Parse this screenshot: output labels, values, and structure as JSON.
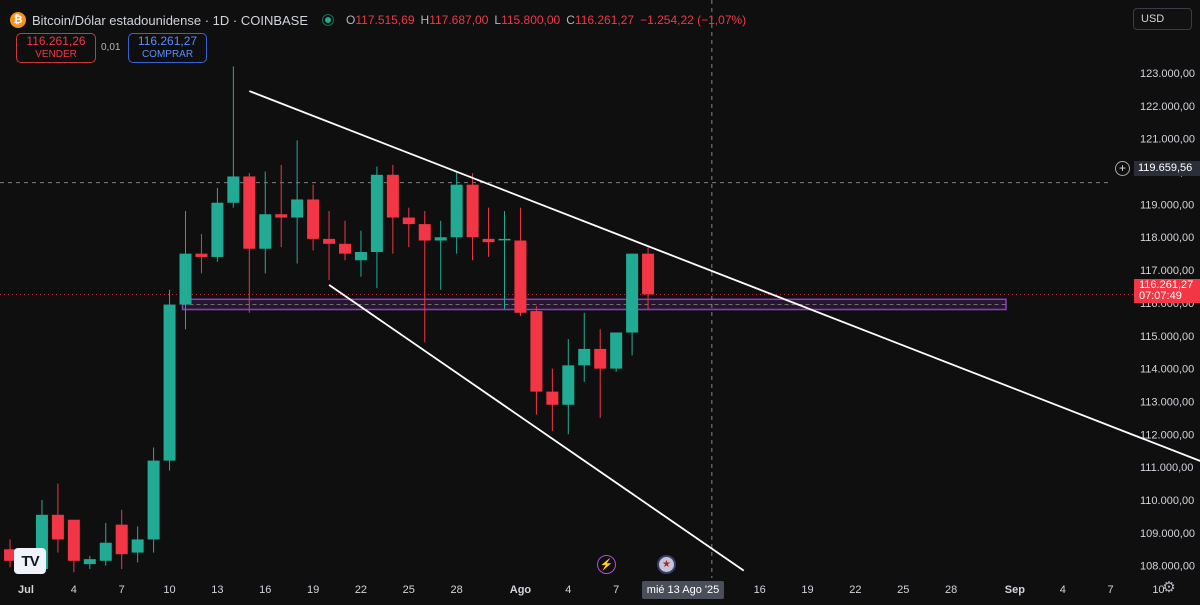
{
  "header": {
    "coin_icon_glyph": "₿",
    "symbol": "Bitcoin/Dólar estadounidense · 1D · COINBASE",
    "ohlc": {
      "open_key": "O",
      "open": "117.515,69",
      "high_key": "H",
      "high": "117.687,00",
      "low_key": "L",
      "low": "115.800,00",
      "close_key": "C",
      "close": "116.261,27",
      "change": "−1.254,22 (−1,07%)"
    }
  },
  "trade": {
    "sell_price": "116.261,26",
    "sell_label": "VENDER",
    "spread": "0,01",
    "buy_price": "116.261,27",
    "buy_label": "COMPRAR"
  },
  "currency": "USD",
  "last_price": {
    "price": "116.261,27",
    "countdown": "07:07:49"
  },
  "crosshair": {
    "price": "119.659,56",
    "date": "mié 13 Ago '25"
  },
  "colors": {
    "up": "#22ab94",
    "down": "#f23645",
    "zone": "#8e3fbf",
    "trendline": "#ffffff",
    "background": "#0f0f0f"
  },
  "icons": {
    "logo": "tradingview-logo-icon",
    "lightning": "lightning-event-icon",
    "flag": "us-flag-event-icon",
    "settings": "gear-icon",
    "add": "plus-icon"
  },
  "chart_data": {
    "type": "candlestick",
    "title": "Bitcoin/Dólar estadounidense · 1D · COINBASE",
    "ylim": [
      107900,
      123700
    ],
    "y_ticks": [
      "123.000,00",
      "122.000,00",
      "121.000,00",
      "120.000,00",
      "119.000,00",
      "118.000,00",
      "117.000,00",
      "116.000,00",
      "115.000,00",
      "114.000,00",
      "113.000,00",
      "112.000,00",
      "111.000,00",
      "110.000,00",
      "109.000,00",
      "108.000,00"
    ],
    "y_tick_values": [
      123000,
      122000,
      121000,
      120000,
      119000,
      118000,
      117000,
      116000,
      115000,
      114000,
      113000,
      112000,
      111000,
      110000,
      109000,
      108000
    ],
    "x_tick_labels": [
      "Jul",
      "4",
      "7",
      "10",
      "13",
      "16",
      "19",
      "22",
      "25",
      "28",
      "Ago",
      "4",
      "7",
      "10",
      "13",
      "16",
      "19",
      "22",
      "25",
      "28",
      "Sep",
      "4",
      "7",
      "10"
    ],
    "x_tick_dates": [
      "2025-07-01",
      "2025-07-04",
      "2025-07-07",
      "2025-07-10",
      "2025-07-13",
      "2025-07-16",
      "2025-07-19",
      "2025-07-22",
      "2025-07-25",
      "2025-07-28",
      "2025-08-01",
      "2025-08-04",
      "2025-08-07",
      "2025-08-10",
      "2025-08-13",
      "2025-08-16",
      "2025-08-19",
      "2025-08-22",
      "2025-08-25",
      "2025-08-28",
      "2025-09-01",
      "2025-09-04",
      "2025-09-07",
      "2025-09-10"
    ],
    "candles": [
      {
        "date": "2025-06-30",
        "o": 108500,
        "h": 108800,
        "l": 107950,
        "c": 108150
      },
      {
        "date": "2025-07-01",
        "o": 107950,
        "h": 108400,
        "l": 107850,
        "c": 107900
      },
      {
        "date": "2025-07-02",
        "o": 107900,
        "h": 110000,
        "l": 107900,
        "c": 109550
      },
      {
        "date": "2025-07-03",
        "o": 109550,
        "h": 110500,
        "l": 108400,
        "c": 108800
      },
      {
        "date": "2025-07-04",
        "o": 109400,
        "h": 109300,
        "l": 107800,
        "c": 108150
      },
      {
        "date": "2025-07-05",
        "o": 108050,
        "h": 108300,
        "l": 107900,
        "c": 108200
      },
      {
        "date": "2025-07-06",
        "o": 108150,
        "h": 109300,
        "l": 108000,
        "c": 108700
      },
      {
        "date": "2025-07-07",
        "o": 109250,
        "h": 109700,
        "l": 107900,
        "c": 108350
      },
      {
        "date": "2025-07-08",
        "o": 108400,
        "h": 109200,
        "l": 108100,
        "c": 108800
      },
      {
        "date": "2025-07-09",
        "o": 108800,
        "h": 111600,
        "l": 108400,
        "c": 111200
      },
      {
        "date": "2025-07-10",
        "o": 111200,
        "h": 116400,
        "l": 110900,
        "c": 115950
      },
      {
        "date": "2025-07-11",
        "o": 115950,
        "h": 118800,
        "l": 115200,
        "c": 117500
      },
      {
        "date": "2025-07-12",
        "o": 117500,
        "h": 118100,
        "l": 116900,
        "c": 117400
      },
      {
        "date": "2025-07-13",
        "o": 117400,
        "h": 119500,
        "l": 117250,
        "c": 119050
      },
      {
        "date": "2025-07-14",
        "o": 119050,
        "h": 123200,
        "l": 118900,
        "c": 119850
      },
      {
        "date": "2025-07-15",
        "o": 119850,
        "h": 119950,
        "l": 115700,
        "c": 117650
      },
      {
        "date": "2025-07-16",
        "o": 117650,
        "h": 120000,
        "l": 116900,
        "c": 118700
      },
      {
        "date": "2025-07-17",
        "o": 118700,
        "h": 120200,
        "l": 117700,
        "c": 118600
      },
      {
        "date": "2025-07-18",
        "o": 118600,
        "h": 120950,
        "l": 117200,
        "c": 119150
      },
      {
        "date": "2025-07-19",
        "o": 119150,
        "h": 119600,
        "l": 117600,
        "c": 117950
      },
      {
        "date": "2025-07-20",
        "o": 117950,
        "h": 118800,
        "l": 116700,
        "c": 117800
      },
      {
        "date": "2025-07-21",
        "o": 117800,
        "h": 118500,
        "l": 117300,
        "c": 117500
      },
      {
        "date": "2025-07-22",
        "o": 117300,
        "h": 118200,
        "l": 116800,
        "c": 117550
      },
      {
        "date": "2025-07-23",
        "o": 117550,
        "h": 120150,
        "l": 116450,
        "c": 119900
      },
      {
        "date": "2025-07-24",
        "o": 119900,
        "h": 120200,
        "l": 117500,
        "c": 118600
      },
      {
        "date": "2025-07-25",
        "o": 118600,
        "h": 118900,
        "l": 117700,
        "c": 118400
      },
      {
        "date": "2025-07-26",
        "o": 118400,
        "h": 118800,
        "l": 114800,
        "c": 117900
      },
      {
        "date": "2025-07-27",
        "o": 117900,
        "h": 118500,
        "l": 116400,
        "c": 118000
      },
      {
        "date": "2025-07-28",
        "o": 118000,
        "h": 120000,
        "l": 117500,
        "c": 119600
      },
      {
        "date": "2025-07-29",
        "o": 119600,
        "h": 119950,
        "l": 117300,
        "c": 118000
      },
      {
        "date": "2025-07-30",
        "o": 117950,
        "h": 118900,
        "l": 117400,
        "c": 117850
      },
      {
        "date": "2025-07-31",
        "o": 117950,
        "h": 118800,
        "l": 115800,
        "c": 117950
      },
      {
        "date": "2025-08-01",
        "o": 117900,
        "h": 118900,
        "l": 115600,
        "c": 115700
      },
      {
        "date": "2025-08-02",
        "o": 115750,
        "h": 115900,
        "l": 112600,
        "c": 113300
      },
      {
        "date": "2025-08-03",
        "o": 113300,
        "h": 114000,
        "l": 112100,
        "c": 112900
      },
      {
        "date": "2025-08-04",
        "o": 112900,
        "h": 114900,
        "l": 112000,
        "c": 114100
      },
      {
        "date": "2025-08-05",
        "o": 114100,
        "h": 115700,
        "l": 113600,
        "c": 114600
      },
      {
        "date": "2025-08-06",
        "o": 114600,
        "h": 115200,
        "l": 112500,
        "c": 114000
      },
      {
        "date": "2025-08-07",
        "o": 114000,
        "h": 115100,
        "l": 113900,
        "c": 115100
      },
      {
        "date": "2025-08-08",
        "o": 115100,
        "h": 117500,
        "l": 114400,
        "c": 117500
      },
      {
        "date": "2025-08-09",
        "o": 117500,
        "h": 117687,
        "l": 115800,
        "c": 116261.27
      }
    ],
    "highlight_zone": {
      "from": 115830,
      "to": 116080
    },
    "last_price": 116261.27,
    "crosshair": {
      "date": "2025-08-13",
      "price": 119659.56
    }
  }
}
